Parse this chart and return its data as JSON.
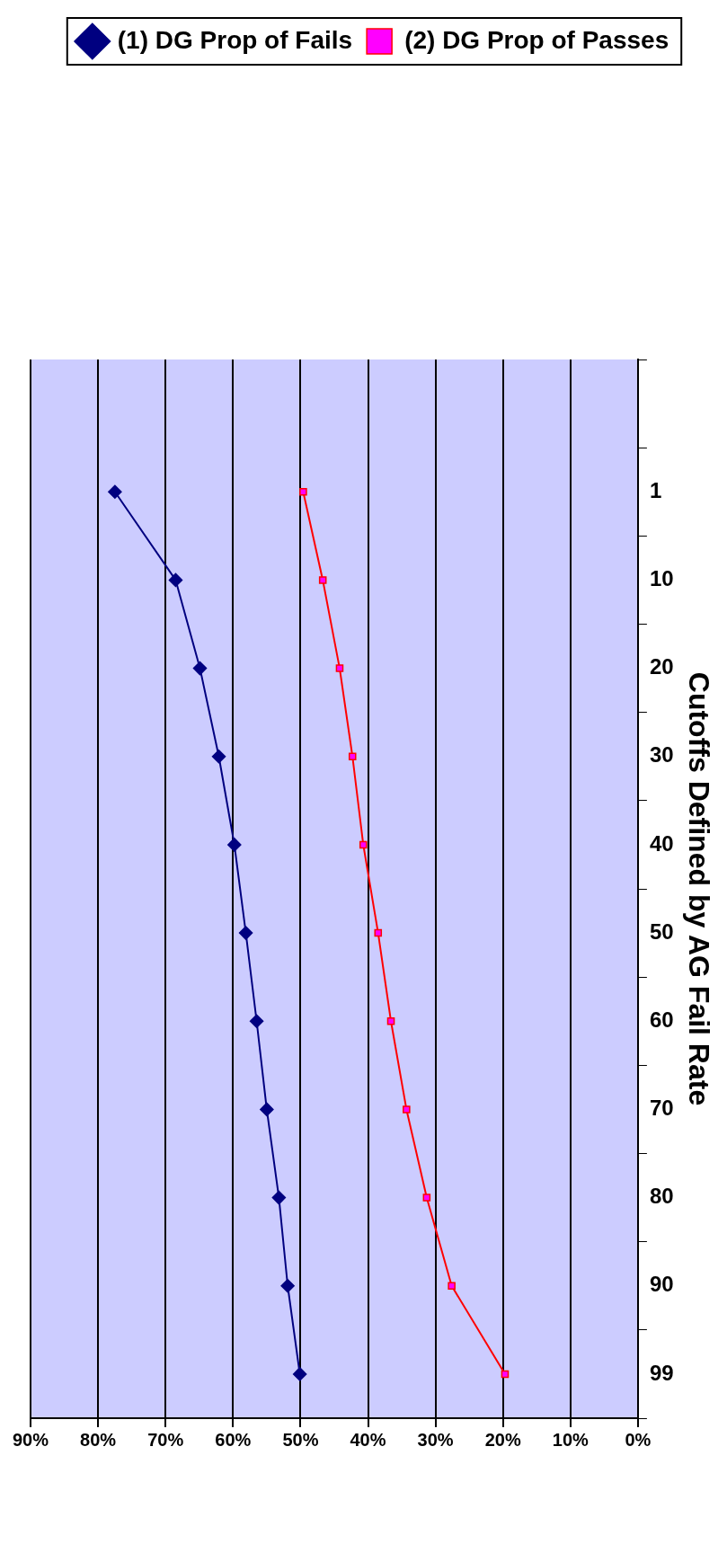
{
  "chart_data": {
    "type": "line",
    "orientation": "horizontal",
    "ylabel": "Cutoffs Defined by AG Fail Rate",
    "categories": [
      null,
      "1",
      "10",
      "20",
      "30",
      "40",
      "50",
      "60",
      "70",
      "80",
      "90",
      "99"
    ],
    "series": [
      {
        "name": "(1) DG Prop of Fails",
        "color": "#000080",
        "marker": "diamond",
        "values": [
          null,
          77.5,
          68.5,
          64.9,
          62.1,
          59.8,
          58.1,
          56.5,
          55.0,
          53.2,
          51.9,
          50.1
        ]
      },
      {
        "name": "(2) DG Prop of Passes",
        "color": "#ff0000",
        "marker": "square",
        "values": [
          null,
          49.6,
          46.7,
          44.2,
          42.3,
          40.7,
          38.5,
          36.6,
          34.3,
          31.3,
          27.6,
          19.7
        ]
      }
    ],
    "xlim": [
      90,
      0
    ],
    "xticks": [
      {
        "value": 0,
        "label": "0%"
      },
      {
        "value": 10,
        "label": "10%"
      },
      {
        "value": 20,
        "label": "20%"
      },
      {
        "value": 30,
        "label": "30%"
      },
      {
        "value": 40,
        "label": "40%"
      },
      {
        "value": 50,
        "label": "50%"
      },
      {
        "value": 60,
        "label": "60%"
      },
      {
        "value": 70,
        "label": "70%"
      },
      {
        "value": 80,
        "label": "80%"
      },
      {
        "value": 90,
        "label": "90%"
      }
    ],
    "grid": "x",
    "legend": "top"
  }
}
